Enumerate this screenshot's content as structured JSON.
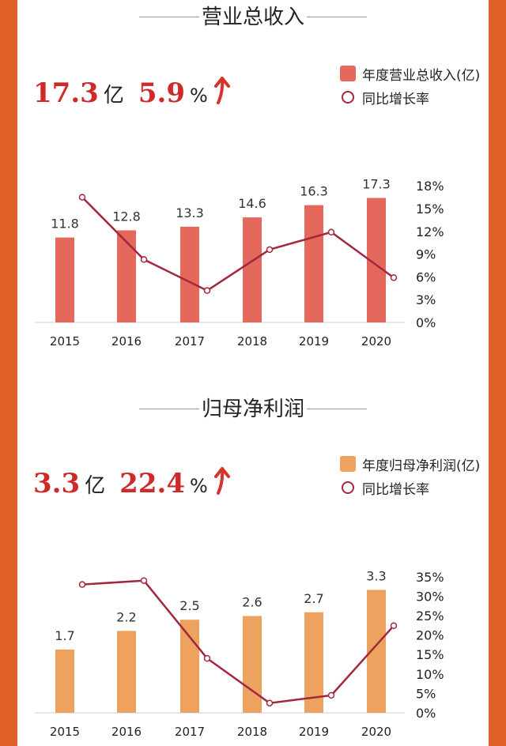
{
  "chart_data": [
    {
      "type": "bar",
      "title": "营业总收入",
      "headline": {
        "value": "17.3",
        "unit": "亿",
        "growth": "5.9",
        "growth_unit": "%"
      },
      "categories": [
        "2015",
        "2016",
        "2017",
        "2018",
        "2019",
        "2020"
      ],
      "series": [
        {
          "name": "年度营业总收入(亿)",
          "type": "bar",
          "axis": "left",
          "color": "#e4685c",
          "values": [
            11.8,
            12.8,
            13.3,
            14.6,
            16.3,
            17.3
          ],
          "labels": [
            "11.8",
            "12.8",
            "13.3",
            "14.6",
            "16.3",
            "17.3"
          ]
        },
        {
          "name": "同比增长率",
          "type": "line",
          "axis": "right",
          "color": "#a2283f",
          "values": [
            16.5,
            8.3,
            4.2,
            9.6,
            11.9,
            5.9
          ]
        }
      ],
      "y_left_range": [
        0,
        19
      ],
      "y_right_range": [
        0,
        18
      ],
      "y_right_ticks": [
        "0%",
        "3%",
        "6%",
        "9%",
        "12%",
        "15%",
        "18%"
      ],
      "legend": "top-right",
      "grid": false
    },
    {
      "type": "bar",
      "title": "归母净利润",
      "headline": {
        "value": "3.3",
        "unit": "亿",
        "growth": "22.4",
        "growth_unit": "%"
      },
      "categories": [
        "2015",
        "2016",
        "2017",
        "2018",
        "2019",
        "2020"
      ],
      "series": [
        {
          "name": "年度归母净利润(亿)",
          "type": "bar",
          "axis": "left",
          "color": "#eda35f",
          "values": [
            1.7,
            2.2,
            2.5,
            2.6,
            2.7,
            3.3
          ],
          "labels": [
            "1.7",
            "2.2",
            "2.5",
            "2.6",
            "2.7",
            "3.3"
          ]
        },
        {
          "name": "同比增长率",
          "type": "line",
          "axis": "right",
          "color": "#a2283f",
          "values": [
            33.0,
            34.0,
            14.0,
            2.5,
            4.5,
            22.4
          ]
        }
      ],
      "y_left_range": [
        0,
        3.65
      ],
      "y_right_range": [
        0,
        35
      ],
      "y_right_ticks": [
        "0%",
        "5%",
        "10%",
        "15%",
        "20%",
        "25%",
        "30%",
        "35%"
      ],
      "legend": "top-right",
      "grid": false
    }
  ]
}
